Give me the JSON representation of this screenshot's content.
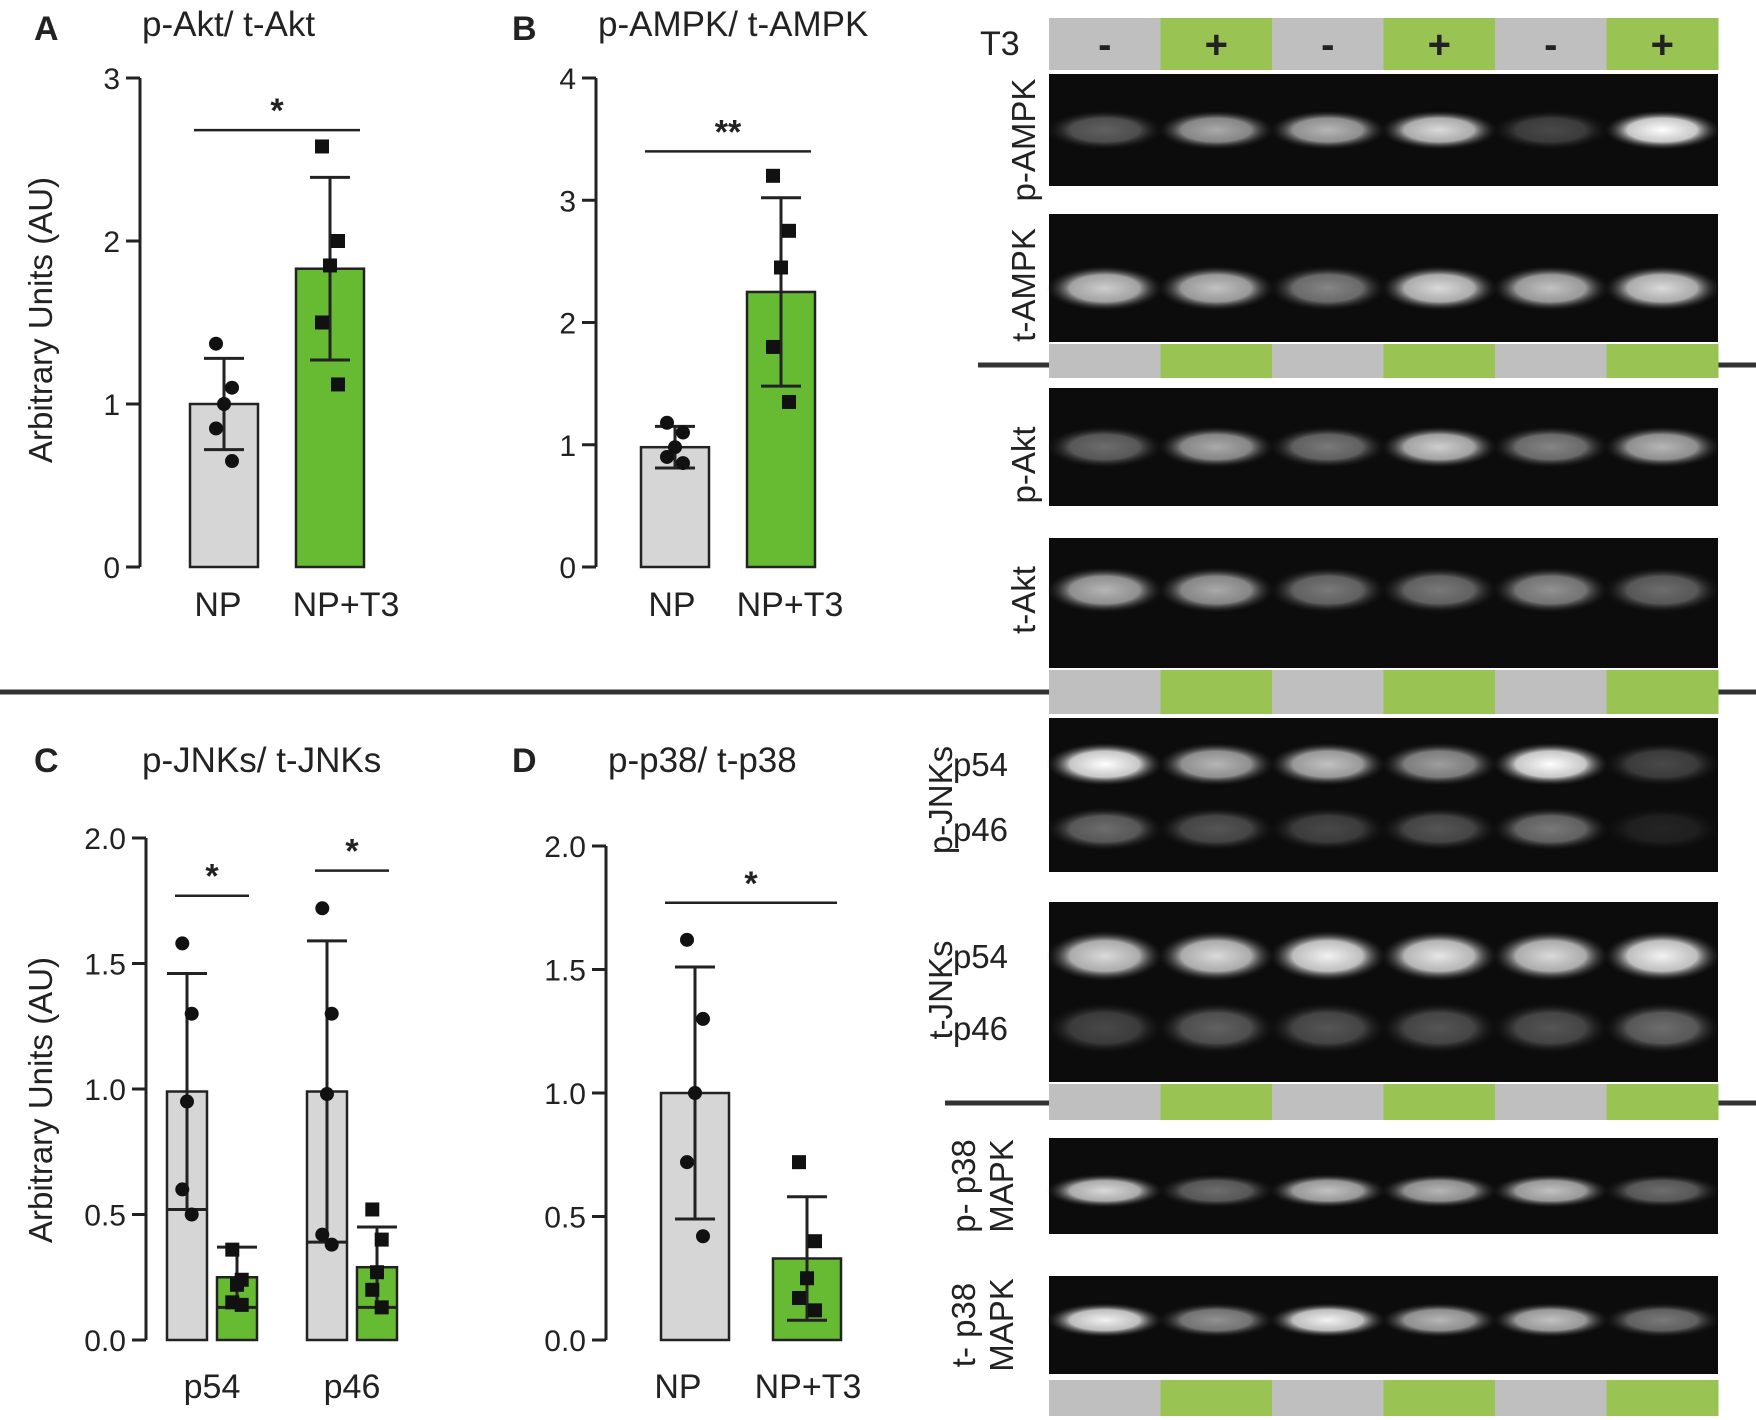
{
  "colors": {
    "control": "#d6d6d6",
    "treated": "#66bb33",
    "lane_control": "#bfbfbf",
    "lane_treated": "#99c454",
    "text": "#222222"
  },
  "chart_data": [
    {
      "id": "A",
      "type": "bar",
      "panel_letter": "A",
      "title": "p-Akt/ t-Akt",
      "ylabel": "Arbitrary Units (AU)",
      "ylim": [
        0,
        3
      ],
      "yticks": [
        0,
        1,
        2,
        3
      ],
      "ytick_labels": [
        "0",
        "1",
        "2",
        "3"
      ],
      "groups": [
        {
          "label": "",
          "bars": [
            {
              "category": "NP",
              "mean": 1.0,
              "sd": 0.28,
              "points": [
                1.37,
                1.1,
                1.0,
                0.85,
                0.65
              ],
              "marker": "circle",
              "color_key": "control"
            },
            {
              "category": "NP+T3",
              "mean": 1.83,
              "sd": 0.56,
              "points": [
                2.58,
                2.0,
                1.85,
                1.5,
                1.12
              ],
              "marker": "square",
              "color_key": "treated"
            }
          ]
        }
      ],
      "significance": [
        {
          "label": "*",
          "y": 2.68,
          "from": [
            0,
            0
          ],
          "to": [
            0,
            1
          ]
        }
      ]
    },
    {
      "id": "B",
      "type": "bar",
      "panel_letter": "B",
      "title": "p-AMPK/ t-AMPK",
      "ylabel": "",
      "ylim": [
        0,
        4
      ],
      "yticks": [
        0,
        1,
        2,
        3,
        4
      ],
      "ytick_labels": [
        "0",
        "1",
        "2",
        "3",
        "4"
      ],
      "groups": [
        {
          "label": "",
          "bars": [
            {
              "category": "NP",
              "mean": 0.98,
              "sd": 0.17,
              "points": [
                1.18,
                1.1,
                0.98,
                0.9,
                0.85
              ],
              "marker": "circle",
              "color_key": "control"
            },
            {
              "category": "NP+T3",
              "mean": 2.25,
              "sd": 0.77,
              "points": [
                3.2,
                2.75,
                2.45,
                1.8,
                1.35
              ],
              "marker": "square",
              "color_key": "treated"
            }
          ]
        }
      ],
      "significance": [
        {
          "label": "**",
          "y": 3.4,
          "from": [
            0,
            0
          ],
          "to": [
            0,
            1
          ]
        }
      ]
    },
    {
      "id": "C",
      "type": "bar",
      "panel_letter": "C",
      "title": "p-JNKs/ t-JNKs",
      "ylabel": "Arbitrary Units (AU)",
      "ylim": [
        0,
        2
      ],
      "yticks": [
        0,
        0.5,
        1,
        1.5,
        2
      ],
      "ytick_labels": [
        "0.0",
        "0.5",
        "1.0",
        "1.5",
        "2.0"
      ],
      "groups": [
        {
          "label": "p54",
          "bars": [
            {
              "category": "",
              "mean": 0.99,
              "sd": 0.47,
              "points": [
                1.58,
                1.3,
                0.95,
                0.6,
                0.5
              ],
              "marker": "circle",
              "color_key": "control"
            },
            {
              "category": "",
              "mean": 0.25,
              "sd": 0.12,
              "points": [
                0.36,
                0.24,
                0.22,
                0.15,
                0.14
              ],
              "marker": "square",
              "color_key": "treated"
            }
          ]
        },
        {
          "label": "p46",
          "bars": [
            {
              "category": "",
              "mean": 0.99,
              "sd": 0.6,
              "points": [
                1.72,
                1.3,
                0.98,
                0.42,
                0.38
              ],
              "marker": "circle",
              "color_key": "control"
            },
            {
              "category": "",
              "mean": 0.29,
              "sd": 0.16,
              "points": [
                0.52,
                0.4,
                0.27,
                0.2,
                0.13
              ],
              "marker": "square",
              "color_key": "treated"
            }
          ]
        }
      ],
      "significance": [
        {
          "label": "*",
          "y": 1.77,
          "from": [
            0,
            0
          ],
          "to": [
            0,
            1
          ]
        },
        {
          "label": "*",
          "y": 1.87,
          "from": [
            1,
            0
          ],
          "to": [
            1,
            1
          ]
        }
      ]
    },
    {
      "id": "D",
      "type": "bar",
      "panel_letter": "D",
      "title": "p-p38/ t-p38",
      "ylabel": "",
      "ylim": [
        0,
        2
      ],
      "yticks": [
        0,
        0.5,
        1,
        1.5,
        2
      ],
      "ytick_labels": [
        "0.0",
        "0.5",
        "1.0",
        "1.5",
        "2.0"
      ],
      "groups": [
        {
          "label": "",
          "bars": [
            {
              "category": "NP",
              "mean": 1.0,
              "sd": 0.51,
              "points": [
                1.62,
                1.3,
                1.0,
                0.72,
                0.42
              ],
              "marker": "circle",
              "color_key": "control"
            },
            {
              "category": "NP+T3",
              "mean": 0.33,
              "sd": 0.25,
              "points": [
                0.72,
                0.4,
                0.25,
                0.17,
                0.12
              ],
              "marker": "square",
              "color_key": "treated"
            }
          ]
        }
      ],
      "significance": [
        {
          "label": "*",
          "y": 1.77,
          "from": [
            0,
            0
          ],
          "to": [
            0,
            1
          ]
        }
      ]
    }
  ],
  "blots": {
    "treatment_label": "T3",
    "lane_signs": [
      "-",
      "+",
      "-",
      "+",
      "-",
      "+"
    ],
    "rows": [
      {
        "label": "p-AMPK",
        "sublabels": []
      },
      {
        "label": "t-AMPK",
        "sublabels": []
      },
      {
        "label": "p-Akt",
        "sublabels": []
      },
      {
        "label": "t-Akt",
        "sublabels": []
      },
      {
        "label": "p-JNKs",
        "sublabels": [
          "p54",
          "p46"
        ]
      },
      {
        "label": "t-JNKs",
        "sublabels": [
          "p54",
          "p46"
        ]
      },
      {
        "label": "p- p38",
        "label2": "MAPK",
        "sublabels": []
      },
      {
        "label": "t- p38",
        "label2": "MAPK",
        "sublabels": []
      }
    ]
  }
}
